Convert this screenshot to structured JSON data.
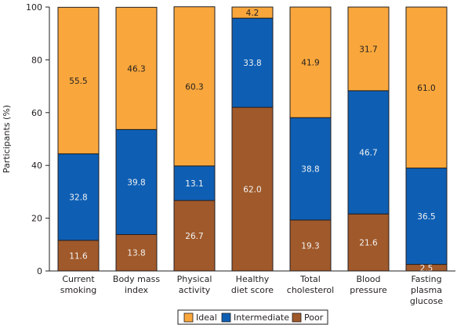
{
  "chart_data": {
    "type": "bar",
    "stacked": true,
    "categories": [
      [
        "Current",
        "smoking"
      ],
      [
        "Body mass",
        "index"
      ],
      [
        "Physical",
        "activity"
      ],
      [
        "Healthy",
        "diet score"
      ],
      [
        "Total",
        "cholesterol"
      ],
      [
        "Blood",
        "pressure"
      ],
      [
        "Fasting",
        "plasma",
        "glucose"
      ]
    ],
    "series": [
      {
        "name": "Poor",
        "color": "#a0592a",
        "values": [
          11.6,
          13.8,
          26.7,
          62.0,
          19.3,
          21.6,
          2.5
        ],
        "labels": [
          "11.6",
          "13.8",
          "26.7",
          "62.0",
          "19.3",
          "21.6",
          "2.5"
        ]
      },
      {
        "name": "Intermediate",
        "color": "#0e5fb4",
        "values": [
          32.8,
          39.8,
          13.1,
          33.8,
          38.8,
          46.7,
          36.5
        ],
        "labels": [
          "32.8",
          "39.8",
          "13.1",
          "33.8",
          "38.8",
          "46.7",
          "36.5"
        ]
      },
      {
        "name": "Ideal",
        "color": "#f9a73c",
        "values": [
          55.5,
          46.3,
          60.3,
          4.2,
          41.9,
          31.7,
          61.0
        ],
        "labels": [
          "55.5",
          "46.3",
          "60.3",
          "4.2",
          "41.9",
          "31.7",
          "61.0"
        ]
      }
    ],
    "ylabel": "Participants (%)",
    "xlabel": "",
    "ylim": [
      0,
      100
    ],
    "yticks": [
      0,
      20,
      40,
      60,
      80,
      100
    ],
    "legend": {
      "placement": "bottom-center",
      "order": [
        "Ideal",
        "Intermediate",
        "Poor"
      ]
    },
    "grid": false
  }
}
